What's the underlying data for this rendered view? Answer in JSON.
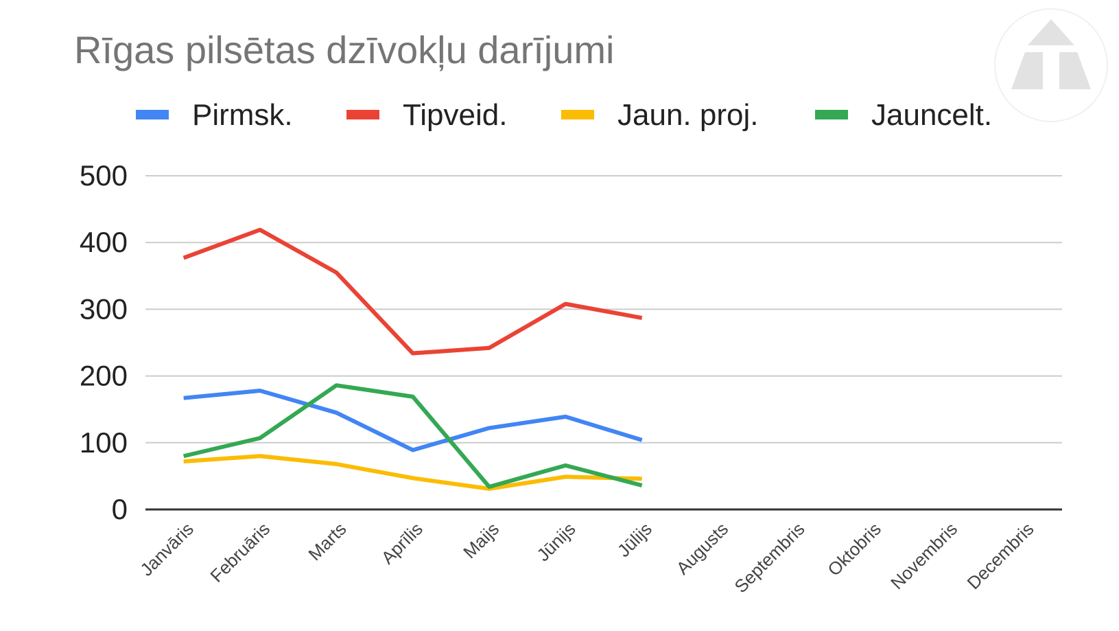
{
  "chart_data": {
    "type": "line",
    "title": "Rīgas pilsētas dzīvokļu darījumi",
    "categories": [
      "Janvāris",
      "Februāris",
      "Marts",
      "Aprīlis",
      "Maijs",
      "Jūnijs",
      "Jūlijs",
      "Augusts",
      "Septembris",
      "Oktobris",
      "Novembris",
      "Decembris"
    ],
    "series": [
      {
        "name": "Pirmsk.",
        "color": "#4285F4",
        "values": [
          167,
          178,
          145,
          89,
          122,
          139,
          104,
          null,
          null,
          null,
          null,
          null
        ]
      },
      {
        "name": "Tipveid.",
        "color": "#EA4335",
        "values": [
          377,
          419,
          355,
          234,
          242,
          308,
          287,
          null,
          null,
          null,
          null,
          null
        ]
      },
      {
        "name": "Jaun. proj.",
        "color": "#FBBC04",
        "values": [
          72,
          80,
          68,
          47,
          31,
          49,
          46,
          null,
          null,
          null,
          null,
          null
        ]
      },
      {
        "name": "Jauncelt.",
        "color": "#34A853",
        "values": [
          80,
          107,
          186,
          169,
          34,
          66,
          36,
          null,
          null,
          null,
          null,
          null
        ]
      }
    ],
    "y_ticks": [
      0,
      100,
      200,
      300,
      400,
      500
    ],
    "ylim": [
      0,
      500
    ],
    "grid": true,
    "legend_position": "top",
    "xlabel": "",
    "ylabel": ""
  },
  "logo": {
    "icon": "triangle-logo-icon",
    "color": "#e0e0e0"
  }
}
